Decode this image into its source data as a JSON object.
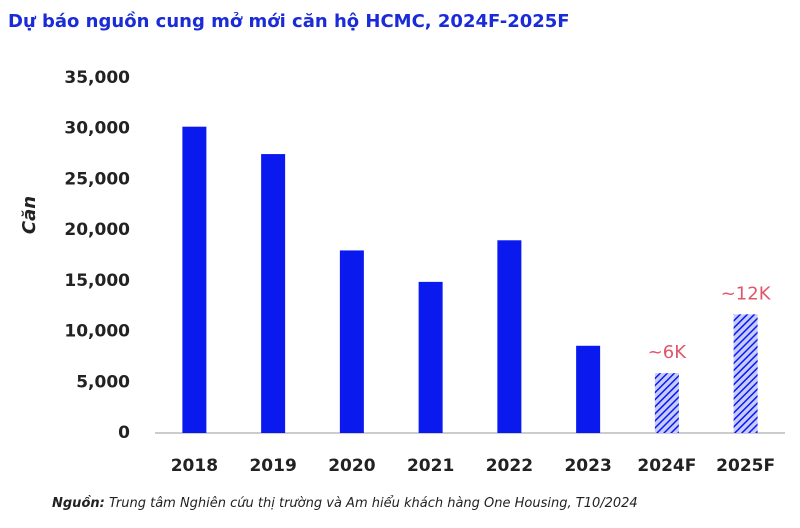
{
  "chart_data": {
    "type": "bar",
    "title": "Dự báo nguồn cung mở mới  căn hộ HCMC, 2024F-2025F",
    "y_label": "Căn",
    "categories": [
      "2018",
      "2019",
      "2020",
      "2021",
      "2022",
      "2023",
      "2024F",
      "2025F"
    ],
    "values": [
      30200,
      27500,
      18000,
      14900,
      19000,
      8600,
      5900,
      11700
    ],
    "value_labels": [
      null,
      null,
      null,
      null,
      null,
      null,
      "~6K",
      "~12K"
    ],
    "hatched": [
      false,
      false,
      false,
      false,
      false,
      false,
      true,
      true
    ],
    "color": "#0a1aef",
    "value_label_color": "#e0566a",
    "ylim": [
      0,
      35000
    ],
    "yticks": [
      0,
      {
        "value": 5000,
        "label": "5,000"
      },
      {
        "value": 10000,
        "label": "10,000"
      },
      {
        "value": 15000,
        "label": "15,000"
      },
      {
        "value": 20000,
        "label": "20,000"
      },
      {
        "value": 25000,
        "label": "25,000"
      },
      {
        "value": 30000,
        "label": "30,000"
      },
      {
        "value": 35000,
        "label": "35,000"
      }
    ],
    "grid": false,
    "source_label": "Nguồn:",
    "source": " Trung tâm Nghiên cứu thị trường và Am hiểu khách hàng One Housing, T10/2024"
  }
}
